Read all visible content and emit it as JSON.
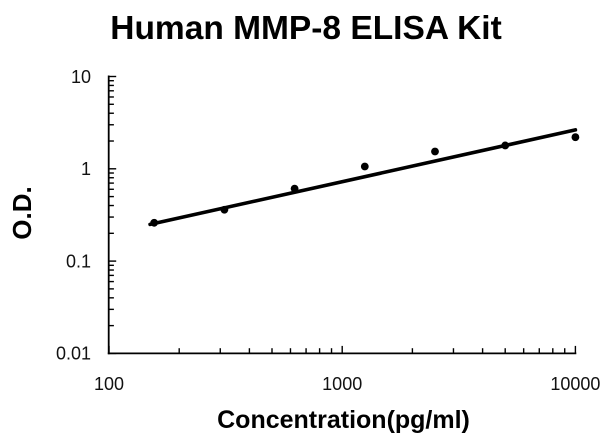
{
  "page": {
    "background": "#ffffff"
  },
  "chart_data": {
    "type": "scatter",
    "title": "Human MMP-8 ELISA Kit",
    "xlabel": "Concentration(pg/ml)",
    "ylabel": "O.D.",
    "x_scale": "log",
    "y_scale": "log",
    "xlim": [
      100,
      10000
    ],
    "ylim": [
      0.01,
      10
    ],
    "x_tick_labels": [
      "100",
      "1000",
      "10000"
    ],
    "y_tick_labels": [
      "10",
      "1",
      "0.1",
      "0.01"
    ],
    "x_ticks": [
      100,
      1000,
      10000
    ],
    "y_ticks": [
      10,
      1,
      0.1,
      0.01
    ],
    "grid": false,
    "legend": false,
    "tick_direction": "inside",
    "ink_color": "#000000",
    "series": [
      {
        "name": "standard-points",
        "kind": "points",
        "x": [
          156.25,
          312.5,
          625,
          1250,
          2500,
          5000,
          10000
        ],
        "y": [
          0.26,
          0.36,
          0.61,
          1.06,
          1.54,
          1.79,
          2.2
        ]
      },
      {
        "name": "fit-line",
        "kind": "line",
        "x": [
          150,
          10000
        ],
        "y": [
          0.25,
          2.64
        ]
      }
    ]
  }
}
